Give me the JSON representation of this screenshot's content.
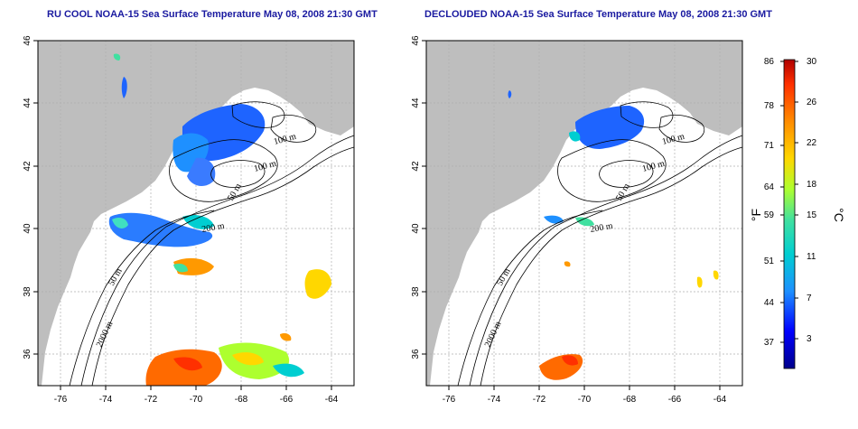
{
  "panels": [
    {
      "id": "left",
      "title": "RU COOL NOAA-15 Sea Surface Temperature May 08, 2008 21:30 GMT",
      "contour_labels": [
        "100 m",
        "100 m",
        "50 m",
        "200 m",
        "50 m",
        "2000 m"
      ]
    },
    {
      "id": "right",
      "title": "DECLOUDED NOAA-15 Sea Surface Temperature May 08, 2008 21:30 GMT",
      "contour_labels": [
        "100 m",
        "100 m",
        "50 m",
        "200 m",
        "50 m",
        "2000 m"
      ]
    }
  ],
  "axes": {
    "x_ticks": [
      "-76",
      "-74",
      "-72",
      "-70",
      "-68",
      "-66",
      "-64"
    ],
    "y_ticks": [
      "46",
      "44",
      "42",
      "40",
      "38",
      "36"
    ],
    "x_values": [
      -76,
      -74,
      -72,
      -70,
      -68,
      -66,
      -64
    ],
    "y_values": [
      46,
      44,
      42,
      40,
      38,
      36
    ],
    "lon_range": [
      -77,
      -63
    ],
    "lat_range": [
      35,
      46
    ]
  },
  "colorbar": {
    "fahrenheit_labels": [
      "86",
      "78",
      "71",
      "64",
      "59",
      "51",
      "44",
      "37"
    ],
    "celsius_labels": [
      "30",
      "26",
      "22",
      "18",
      "15",
      "11",
      "7",
      "3"
    ],
    "fahrenheit_unit": "°F",
    "celsius_unit": "°C",
    "celsius_range": [
      0,
      30
    ],
    "colors": [
      "#00008b",
      "#0000ff",
      "#1e90ff",
      "#00ced1",
      "#40e0a0",
      "#adff2f",
      "#ffd700",
      "#ff8c00",
      "#ff3000",
      "#b00000"
    ]
  },
  "colors": {
    "land": "#bebebe",
    "ocean": "#ffffff",
    "contour": "#000000",
    "grid": "#b0b0b0",
    "title": "#1a1aa0"
  }
}
